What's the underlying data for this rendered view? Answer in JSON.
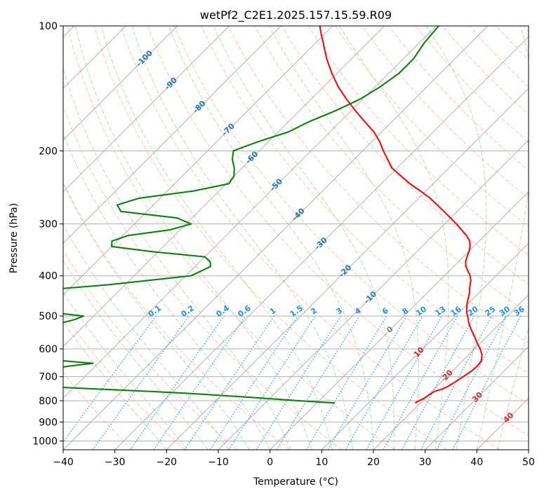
{
  "chart_data": {
    "type": "line",
    "title": "wetPf2_C2E1.2025.157.15.59.R09",
    "xlabel": "Temperature (°C)",
    "ylabel": "Pressure (hPa)",
    "xlim": [
      -40,
      50
    ],
    "ylim": [
      1050,
      100
    ],
    "y_scale": "log",
    "x_ticks": [
      -40,
      -30,
      -20,
      -10,
      0,
      10,
      20,
      30,
      40,
      50
    ],
    "y_ticks": [
      100,
      200,
      300,
      400,
      500,
      600,
      700,
      800,
      900,
      1000
    ],
    "grid": true,
    "colors": {
      "temperature": "#ff0000",
      "dewpoint": "#008000",
      "isotherm": "#808080",
      "dry_adiabat": "#ff7f50",
      "moist_adiabat": "#2ca02c",
      "mixing_ratio": "#1e90ff",
      "isotherm_label_cold": "#1f77b4",
      "isotherm_label_warm": "#d62728",
      "isotherm_label_zero": "#808080"
    },
    "isotherm_labels": [
      "-100",
      "-90",
      "-80",
      "-70",
      "-60",
      "-50",
      "-40",
      "-30",
      "-20",
      "-10",
      "0",
      "10",
      "20",
      "30",
      "40"
    ],
    "isotherm_values": [
      -100,
      -90,
      -80,
      -70,
      -60,
      -50,
      -40,
      -30,
      -20,
      -10,
      0,
      10,
      20,
      30,
      40
    ],
    "mixing_ratio_labels": [
      "0.1",
      "0.2",
      "0.4",
      "0.6",
      "1",
      "1.5",
      "2",
      "3",
      "4",
      "6",
      "8",
      "10",
      "13",
      "16",
      "20",
      "25",
      "30",
      "36"
    ],
    "mixing_ratio_values": [
      0.1,
      0.2,
      0.4,
      0.6,
      1,
      1.5,
      2,
      3,
      4,
      6,
      8,
      10,
      13,
      16,
      20,
      25,
      30,
      36
    ],
    "series": [
      {
        "key": "temperature",
        "pressure": [
          810,
          800,
          790,
          780,
          760,
          750,
          740,
          720,
          700,
          680,
          660,
          640,
          620,
          600,
          580,
          560,
          540,
          520,
          500,
          490,
          480,
          470,
          460,
          450,
          440,
          430,
          420,
          410,
          400,
          390,
          380,
          370,
          360,
          350,
          340,
          330,
          320,
          300,
          280,
          260,
          250,
          240,
          220,
          200,
          190,
          180,
          170,
          160,
          150,
          140,
          130,
          120,
          110,
          105,
          100
        ],
        "temperature": [
          19.0,
          19.3,
          19.8,
          20.0,
          20.5,
          21.5,
          22.1,
          22.7,
          23.2,
          23.7,
          23.9,
          23.6,
          22.6,
          21.1,
          19.3,
          17.6,
          15.7,
          13.9,
          12.3,
          11.4,
          10.7,
          10.0,
          9.4,
          8.8,
          8.2,
          7.4,
          6.7,
          6.0,
          5.0,
          3.7,
          2.4,
          1.4,
          0.7,
          0.1,
          -0.7,
          -1.8,
          -3.5,
          -7.7,
          -12.5,
          -17.8,
          -21.0,
          -24.5,
          -31.0,
          -36.0,
          -38.5,
          -41.5,
          -45.3,
          -49.2,
          -53.2,
          -57.2,
          -61.0,
          -64.8,
          -68.5,
          -70.5,
          -72.5
        ]
      },
      {
        "key": "dewpoint",
        "pressure": [
          810,
          800,
          785,
          770,
          760,
          750,
          740,
          720,
          700,
          690,
          680,
          675,
          670,
          660,
          650,
          640,
          630,
          620,
          600,
          580,
          560,
          540,
          530,
          520,
          510,
          500,
          490,
          480,
          470,
          460,
          450,
          440,
          430,
          420,
          410,
          400,
          390,
          380,
          370,
          360,
          350,
          340,
          330,
          320,
          310,
          300,
          290,
          280,
          270,
          260,
          250,
          240,
          230,
          220,
          210,
          200,
          190,
          180,
          170,
          160,
          150,
          140,
          130,
          120,
          110,
          100
        ],
        "temperature": [
          3.5,
          -4.0,
          -14.0,
          -25.0,
          -34.0,
          -45.0,
          -55.0,
          -63.0,
          -68.0,
          -60.0,
          -56.0,
          -56.0,
          -58.0,
          -55.0,
          -51.0,
          -58.0,
          -65.0,
          -70.0,
          -67.0,
          -67.0,
          -64.0,
          -64.5,
          -67.0,
          -65.0,
          -63.0,
          -62.0,
          -69.0,
          -72.0,
          -69.0,
          -70.0,
          -74.0,
          -75.0,
          -72.0,
          -63.0,
          -56.0,
          -49.0,
          -48.0,
          -47.0,
          -48.0,
          -50.0,
          -61.0,
          -70.0,
          -71.0,
          -69.0,
          -62.0,
          -59.0,
          -63.0,
          -75.0,
          -77.0,
          -74.0,
          -65.0,
          -59.5,
          -60.0,
          -61.5,
          -63.5,
          -65.0,
          -62.0,
          -58.0,
          -56.0,
          -53.0,
          -50.5,
          -49.0,
          -48.0,
          -48.0,
          -49.0,
          -49.5
        ]
      }
    ]
  }
}
